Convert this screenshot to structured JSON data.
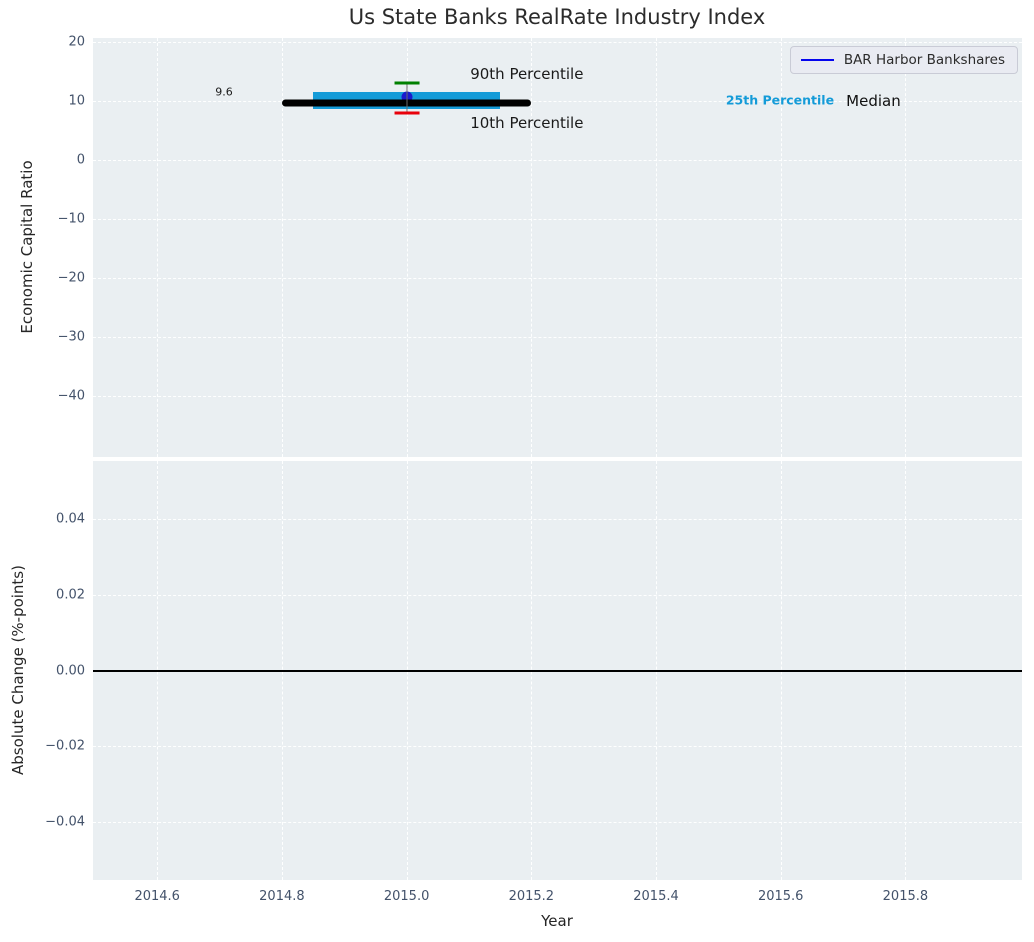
{
  "figure": {
    "title": "Us State Banks RealRate Industry Index"
  },
  "legend": {
    "label": "BAR Harbor Bankshares",
    "line_color": "#0404ee"
  },
  "colors": {
    "axes_background": "#eaeff2",
    "grid": "#ffffff",
    "tick_label": "#43526a",
    "text": "#262626",
    "iqr_box": "#149bd8",
    "p90_cap": "#008000",
    "p10_cap": "#e8000b",
    "median_line": "#000000",
    "company_marker": "#1b1bcd",
    "zero_line": "#000000"
  },
  "chart_data": [
    {
      "id": "economic-capital-ratio-panel",
      "type": "line",
      "panel": "top",
      "title": "Us State Banks RealRate Industry Index",
      "xlabel": "",
      "ylabel": "Economic Capital Ratio",
      "xlim": [
        2014.497,
        2015.987
      ],
      "ylim": [
        -50.3,
        20.6
      ],
      "grid": "white-dashed",
      "legend_position": "upper right",
      "legend_entries": [
        "BAR Harbor Bankshares"
      ],
      "xticks": [
        {
          "v": 2014.6,
          "label": "2014.6"
        },
        {
          "v": 2014.8,
          "label": "2014.8"
        },
        {
          "v": 2015.0,
          "label": "2015.0"
        },
        {
          "v": 2015.2,
          "label": "2015.2"
        },
        {
          "v": 2015.4,
          "label": "2015.4"
        },
        {
          "v": 2015.6,
          "label": "2015.6"
        },
        {
          "v": 2015.8,
          "label": "2015.8"
        }
      ],
      "show_x_tick_labels": false,
      "yticks": [
        {
          "v": 20,
          "label": "20"
        },
        {
          "v": 10,
          "label": "10"
        },
        {
          "v": 0,
          "label": "0"
        },
        {
          "v": -10,
          "label": "−10"
        },
        {
          "v": -20,
          "label": "−20"
        },
        {
          "v": -30,
          "label": "−30"
        },
        {
          "v": -40,
          "label": "−40"
        }
      ],
      "series": [
        {
          "role": "iqr-box",
          "name": "25th-75th-percentile-band",
          "x_start": 2014.85,
          "x_end": 2015.15,
          "y_low": 8.5,
          "y_high": 11.5,
          "color": "#149bd8"
        },
        {
          "role": "company-marker",
          "name": "BAR Harbor Bankshares",
          "marker": "circle",
          "x": 2015.0,
          "y": 10.7,
          "color": "#1b1bcd"
        },
        {
          "role": "median-line",
          "name": "industry-median",
          "x_start": 2014.8,
          "x_end": 2015.2,
          "y": 9.6,
          "color": "#000000",
          "linewidth": 7
        },
        {
          "role": "whisker",
          "name": "10th-90th-percentile-whisker",
          "x": 2015.0,
          "y_low": 7.9,
          "y_high": 13.0,
          "cap_halfwidth": 0.02,
          "line_color": "#6a6a6a",
          "high_cap_color": "#008000",
          "low_cap_color": "#e8000b"
        }
      ],
      "annotations": [
        {
          "name": "median-value-label",
          "text": "9.6",
          "x": 2014.693,
          "y": 11.5,
          "color": "#1a1a1a",
          "size": 11,
          "weight": "normal"
        },
        {
          "name": "90th-percentile-label",
          "text": "90th Percentile",
          "x": 2015.102,
          "y": 14.5,
          "color": "#1a1a1a",
          "size": 15,
          "weight": "normal"
        },
        {
          "name": "10th-percentile-label",
          "text": "10th Percentile",
          "x": 2015.102,
          "y": 6.2,
          "color": "#1a1a1a",
          "size": 15,
          "weight": "normal"
        },
        {
          "name": "25th-percentile-label",
          "text": "25th Percentile",
          "x": 2015.512,
          "y": 10.1,
          "color": "#149bd8",
          "size": 12.5,
          "weight": "bold"
        },
        {
          "name": "median-label",
          "text": "Median",
          "x": 2015.705,
          "y": 9.9,
          "color": "#111111",
          "size": 15,
          "weight": "normal"
        }
      ]
    },
    {
      "id": "absolute-change-panel",
      "type": "line",
      "panel": "bottom",
      "title": "",
      "xlabel": "Year",
      "ylabel": "Absolute Change (%-points)",
      "xlim": [
        2014.497,
        2015.987
      ],
      "ylim": [
        -0.0553,
        0.0553
      ],
      "grid": "white-dashed",
      "xticks": [
        {
          "v": 2014.6,
          "label": "2014.6"
        },
        {
          "v": 2014.8,
          "label": "2014.8"
        },
        {
          "v": 2015.0,
          "label": "2015.0"
        },
        {
          "v": 2015.2,
          "label": "2015.2"
        },
        {
          "v": 2015.4,
          "label": "2015.4"
        },
        {
          "v": 2015.6,
          "label": "2015.6"
        },
        {
          "v": 2015.8,
          "label": "2015.8"
        }
      ],
      "show_x_tick_labels": true,
      "yticks": [
        {
          "v": 0.04,
          "label": "0.04"
        },
        {
          "v": 0.02,
          "label": "0.02"
        },
        {
          "v": 0.0,
          "label": "0.00"
        },
        {
          "v": -0.02,
          "label": "−0.02"
        },
        {
          "v": -0.04,
          "label": "−0.04"
        }
      ],
      "series": [
        {
          "role": "hline",
          "name": "zero-change-line",
          "y": 0.0,
          "color": "#000000",
          "linewidth": 2
        }
      ],
      "annotations": []
    }
  ]
}
